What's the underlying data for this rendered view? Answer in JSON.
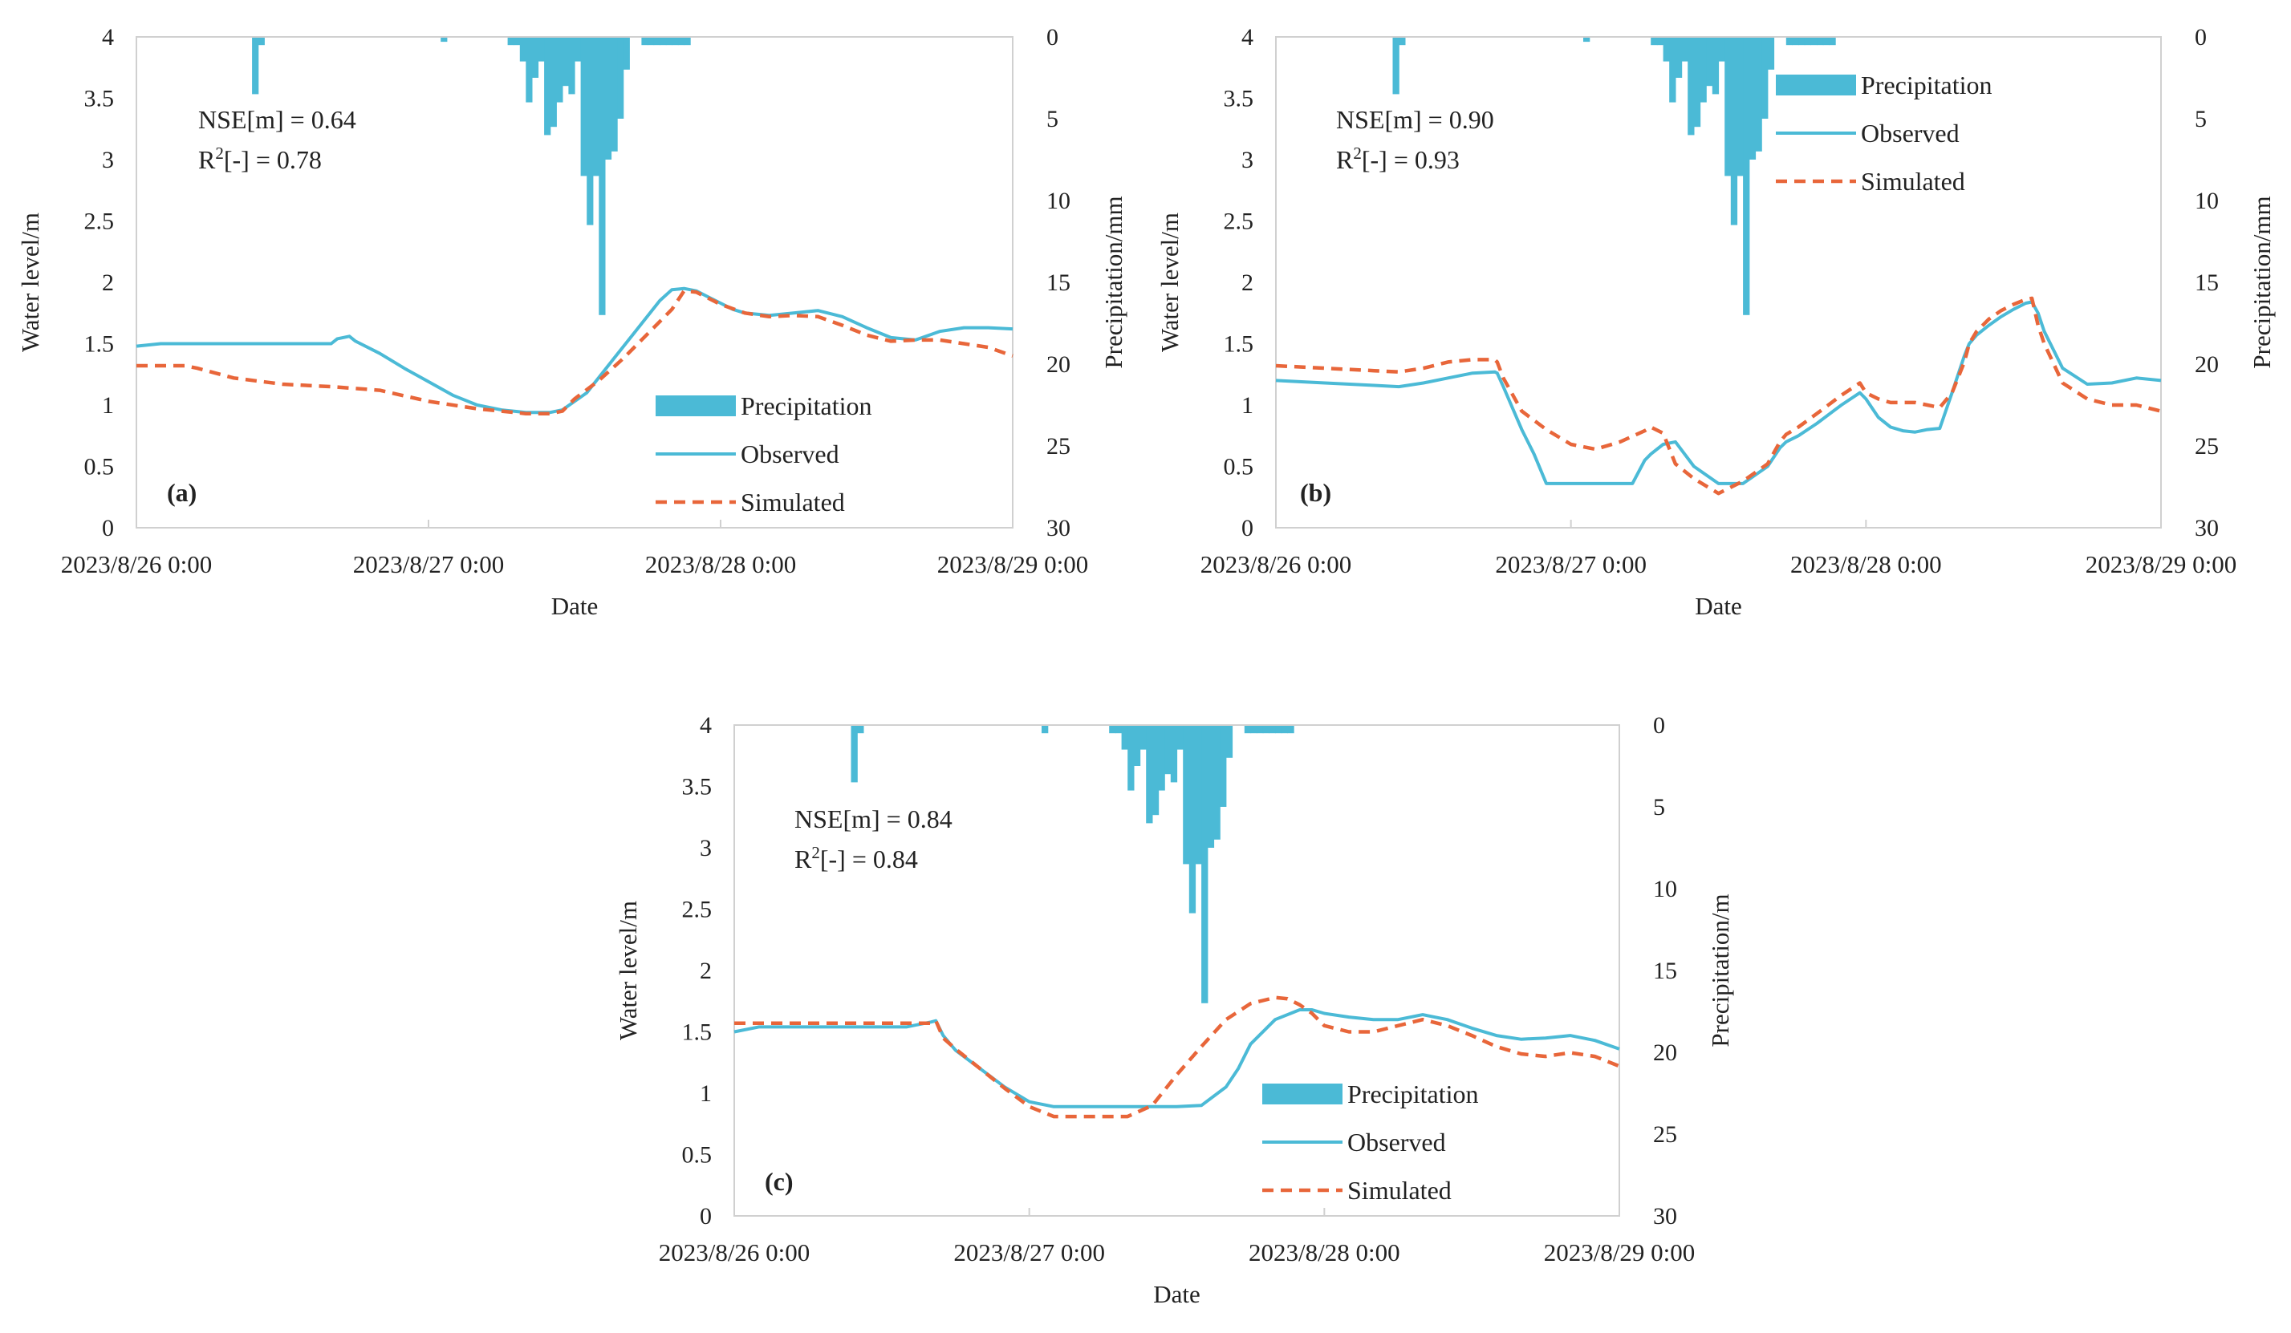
{
  "figure_note": "Three panels: observed vs simulated water level with inverted precipitation bars",
  "chart_data": [
    {
      "type": "line",
      "panel_label": "(a)",
      "xlabel": "Date",
      "ylabel": "Water level/m",
      "y2label": "Precipitation/mm",
      "x_ticks": [
        "2023/8/26 0:00",
        "2023/8/27 0:00",
        "2023/8/28 0:00",
        "2023/8/29 0:00"
      ],
      "xlim_hours": [
        0,
        72
      ],
      "ylim": [
        0,
        4
      ],
      "y_ticks": [
        0,
        0.5,
        1,
        1.5,
        2,
        2.5,
        3,
        3.5,
        4
      ],
      "y_tick_labels": [
        "0",
        "0.5",
        "1",
        "1.5",
        "2",
        "2.5",
        "3",
        "3.5",
        "4"
      ],
      "y2lim_inverted": [
        0,
        30
      ],
      "y2_ticks": [
        0,
        5,
        10,
        15,
        20,
        25,
        30
      ],
      "y2_tick_labels": [
        "0",
        "5",
        "10",
        "15",
        "20",
        "25",
        "30"
      ],
      "metrics": {
        "nse_prefix": "NSE[m] = ",
        "nse_value": "0.64",
        "r2_base": "R",
        "r2_sup": "2",
        "r2_suffix": "[-] = ",
        "r2_value": "0.78"
      },
      "legend": {
        "placement": "bottom-right",
        "entries": [
          "Precipitation",
          "Observed",
          "Simulated"
        ]
      },
      "colors": {
        "precipitation": "#4bbad6",
        "observed": "#4bbad6",
        "simulated": "#e8663a"
      },
      "precipitation": {
        "start_hours": 9.5,
        "bar_hours": 0.5,
        "values_mm": [
          3.5,
          0.5,
          0,
          0,
          0,
          0,
          0,
          0,
          0,
          0,
          0,
          0,
          0,
          0,
          0,
          0,
          0,
          0,
          0,
          0,
          0,
          0,
          0,
          0,
          0,
          0,
          0,
          0,
          0,
          0,
          0,
          0.3,
          0,
          0,
          0,
          0,
          0,
          0,
          0,
          0,
          0,
          0,
          0.5,
          0.5,
          1.5,
          4,
          2.5,
          1.5,
          6,
          5.5,
          4,
          3,
          3.5,
          1.5,
          8.5,
          11.5,
          8.5,
          17,
          7.5,
          7,
          5,
          2,
          0,
          0,
          0.5,
          0.5,
          0.5,
          0.5,
          0.5,
          0.5,
          0.5,
          0.5
        ]
      },
      "series": [
        {
          "name": "Observed",
          "style": "solid",
          "x": [
            0,
            2,
            6,
            10,
            14,
            16,
            16.5,
            17.5,
            18,
            20,
            22,
            24,
            26,
            28,
            30,
            32,
            34,
            35,
            37,
            39,
            41,
            43,
            44,
            45,
            46,
            47,
            48,
            49,
            50,
            52,
            54,
            56,
            58,
            60,
            62,
            64,
            66,
            68,
            70,
            72
          ],
          "values": [
            1.48,
            1.5,
            1.5,
            1.5,
            1.5,
            1.5,
            1.54,
            1.56,
            1.52,
            1.42,
            1.3,
            1.19,
            1.08,
            1.0,
            0.96,
            0.94,
            0.94,
            0.96,
            1.1,
            1.35,
            1.6,
            1.85,
            1.94,
            1.95,
            1.93,
            1.88,
            1.83,
            1.78,
            1.75,
            1.73,
            1.75,
            1.77,
            1.72,
            1.63,
            1.55,
            1.53,
            1.6,
            1.63,
            1.63,
            1.62
          ]
        },
        {
          "name": "Simulated",
          "style": "dashed",
          "x": [
            0,
            4,
            5,
            8,
            12,
            16,
            20,
            24,
            28,
            32,
            34,
            35,
            36,
            38,
            40,
            42,
            44,
            45,
            46,
            48,
            50,
            52,
            54,
            56,
            58,
            60,
            62,
            64,
            66,
            68,
            70,
            72
          ],
          "values": [
            1.32,
            1.32,
            1.3,
            1.22,
            1.17,
            1.15,
            1.12,
            1.03,
            0.97,
            0.93,
            0.93,
            0.95,
            1.05,
            1.2,
            1.38,
            1.58,
            1.78,
            1.93,
            1.92,
            1.82,
            1.75,
            1.72,
            1.73,
            1.72,
            1.65,
            1.57,
            1.52,
            1.53,
            1.53,
            1.5,
            1.47,
            1.4
          ]
        }
      ]
    },
    {
      "type": "line",
      "panel_label": "(b)",
      "xlabel": "Date",
      "ylabel": "Water level/m",
      "y2label": "Precipitation/mm",
      "x_ticks": [
        "2023/8/26 0:00",
        "2023/8/27 0:00",
        "2023/8/28 0:00",
        "2023/8/29 0:00"
      ],
      "xlim_hours": [
        0,
        72
      ],
      "ylim": [
        0,
        4
      ],
      "y_ticks": [
        0,
        0.5,
        1,
        1.5,
        2,
        2.5,
        3,
        3.5,
        4
      ],
      "y_tick_labels": [
        "0",
        "0.5",
        "1",
        "1.5",
        "2",
        "2.5",
        "3",
        "3.5",
        "4"
      ],
      "y2lim_inverted": [
        0,
        30
      ],
      "y2_ticks": [
        0,
        5,
        10,
        15,
        20,
        25,
        30
      ],
      "y2_tick_labels": [
        "0",
        "5",
        "10",
        "15",
        "20",
        "25",
        "30"
      ],
      "metrics": {
        "nse_prefix": "NSE[m] = ",
        "nse_value": "0.90",
        "r2_base": "R",
        "r2_sup": "2",
        "r2_suffix": "[-] = ",
        "r2_value": "0.93"
      },
      "legend": {
        "placement": "top-right",
        "entries": [
          "Precipitation",
          "Observed",
          "Simulated"
        ]
      },
      "colors": {
        "precipitation": "#4bbad6",
        "observed": "#4bbad6",
        "simulated": "#e8663a"
      },
      "precipitation": {
        "start_hours": 9.5,
        "bar_hours": 0.5,
        "values_mm": [
          3.5,
          0.5,
          0,
          0,
          0,
          0,
          0,
          0,
          0,
          0,
          0,
          0,
          0,
          0,
          0,
          0,
          0,
          0,
          0,
          0,
          0,
          0,
          0,
          0,
          0,
          0,
          0,
          0,
          0,
          0,
          0,
          0.3,
          0,
          0,
          0,
          0,
          0,
          0,
          0,
          0,
          0,
          0,
          0.5,
          0.5,
          1.5,
          4,
          2.5,
          1.5,
          6,
          5.5,
          4,
          3,
          3.5,
          1.5,
          8.5,
          11.5,
          8.5,
          17,
          7.5,
          7,
          5,
          2,
          0,
          0,
          0.5,
          0.5,
          0.5,
          0.5,
          0.5,
          0.5,
          0.5,
          0.5
        ]
      },
      "series": [
        {
          "name": "Observed",
          "style": "solid",
          "x": [
            0,
            4,
            8,
            10,
            12,
            14,
            16,
            17.8,
            18,
            18.5,
            20,
            21,
            22,
            23,
            25,
            27,
            29,
            30,
            30.5,
            31.5,
            32.5,
            34,
            36,
            38,
            40,
            41,
            41.5,
            42.5,
            44,
            46,
            47.5,
            48,
            49,
            50,
            51,
            52,
            53,
            54,
            55,
            56,
            56.4,
            57,
            58,
            59,
            60,
            61,
            61.5,
            62,
            62.5,
            64,
            66,
            68,
            70,
            72
          ],
          "values": [
            1.2,
            1.18,
            1.16,
            1.15,
            1.18,
            1.22,
            1.26,
            1.27,
            1.26,
            1.15,
            0.8,
            0.6,
            0.36,
            0.36,
            0.36,
            0.36,
            0.36,
            0.55,
            0.6,
            0.68,
            0.7,
            0.5,
            0.36,
            0.36,
            0.5,
            0.65,
            0.7,
            0.75,
            0.85,
            1.0,
            1.1,
            1.05,
            0.9,
            0.82,
            0.79,
            0.78,
            0.8,
            0.81,
            1.1,
            1.4,
            1.5,
            1.57,
            1.65,
            1.72,
            1.78,
            1.83,
            1.84,
            1.75,
            1.6,
            1.3,
            1.17,
            1.18,
            1.22,
            1.2
          ]
        },
        {
          "name": "Simulated",
          "style": "dashed",
          "x": [
            0,
            4,
            8,
            10,
            12,
            14,
            16,
            17.8,
            18,
            18.5,
            20,
            22,
            24,
            26,
            28,
            30,
            30.5,
            31.5,
            32.5,
            34,
            36,
            38,
            40,
            41,
            41.5,
            42.5,
            44,
            46,
            47.5,
            48,
            49,
            50,
            51,
            52,
            53,
            54,
            55,
            56,
            56.4,
            57,
            58,
            59,
            60,
            61,
            61.5,
            62,
            62.5,
            64,
            66,
            68,
            70,
            72
          ],
          "values": [
            1.32,
            1.3,
            1.28,
            1.27,
            1.3,
            1.35,
            1.37,
            1.37,
            1.35,
            1.22,
            0.95,
            0.8,
            0.68,
            0.64,
            0.7,
            0.79,
            0.82,
            0.77,
            0.52,
            0.4,
            0.28,
            0.38,
            0.52,
            0.7,
            0.76,
            0.82,
            0.93,
            1.08,
            1.18,
            1.1,
            1.05,
            1.02,
            1.02,
            1.02,
            1.0,
            0.98,
            1.1,
            1.35,
            1.5,
            1.6,
            1.7,
            1.77,
            1.82,
            1.86,
            1.87,
            1.65,
            1.5,
            1.18,
            1.05,
            1.0,
            1.0,
            0.95
          ]
        }
      ]
    },
    {
      "type": "line",
      "panel_label": "(c)",
      "xlabel": "Date",
      "ylabel": "Water level/m",
      "y2label": "Precipitation/m",
      "x_ticks": [
        "2023/8/26 0:00",
        "2023/8/27 0:00",
        "2023/8/28 0:00",
        "2023/8/29 0:00"
      ],
      "xlim_hours": [
        0,
        72
      ],
      "ylim": [
        0,
        4
      ],
      "y_ticks": [
        0,
        0.5,
        1,
        1.5,
        2,
        2.5,
        3,
        3.5,
        4
      ],
      "y_tick_labels": [
        "0",
        "0.5",
        "1",
        "1.5",
        "2",
        "2.5",
        "3",
        "3.5",
        "4"
      ],
      "y2lim_inverted": [
        0,
        30
      ],
      "y2_ticks": [
        0,
        5,
        10,
        15,
        20,
        25,
        30
      ],
      "y2_tick_labels": [
        "0",
        "5",
        "10",
        "15",
        "20",
        "25",
        "30"
      ],
      "metrics": {
        "nse_prefix": "NSE[m] = ",
        "nse_value": "0.84",
        "r2_base": "R",
        "r2_sup": "2",
        "r2_suffix": "[-] = ",
        "r2_value": "0.84"
      },
      "legend": {
        "placement": "bottom-right",
        "entries": [
          "Precipitation",
          "Observed",
          "Simulated"
        ]
      },
      "colors": {
        "precipitation": "#4bbad6",
        "observed": "#4bbad6",
        "simulated": "#e8663a"
      },
      "precipitation": {
        "start_hours": 9.5,
        "bar_hours": 0.5,
        "values_mm": [
          3.5,
          0.5,
          0,
          0,
          0,
          0,
          0,
          0,
          0,
          0,
          0,
          0,
          0,
          0,
          0,
          0,
          0,
          0,
          0,
          0,
          0,
          0,
          0,
          0,
          0,
          0,
          0,
          0,
          0,
          0,
          0,
          0.5,
          0,
          0,
          0,
          0,
          0,
          0,
          0,
          0,
          0,
          0,
          0.5,
          0.5,
          1.5,
          4,
          2.5,
          1.5,
          6,
          5.5,
          4,
          3,
          3.5,
          1.5,
          8.5,
          11.5,
          8.5,
          17,
          7.5,
          7,
          5,
          2,
          0,
          0,
          0.5,
          0.5,
          0.5,
          0.5,
          0.5,
          0.5,
          0.5,
          0.5
        ]
      },
      "series": [
        {
          "name": "Observed",
          "style": "solid",
          "x": [
            0,
            2,
            6,
            10,
            14,
            16,
            16.4,
            17,
            18,
            20,
            22,
            24,
            26,
            28,
            30,
            32,
            34,
            35,
            36,
            38,
            40,
            41,
            42,
            44,
            46,
            47,
            48,
            50,
            52,
            54,
            56,
            58,
            60,
            62,
            64,
            66,
            68,
            70,
            72
          ],
          "values": [
            1.5,
            1.54,
            1.54,
            1.54,
            1.54,
            1.58,
            1.59,
            1.47,
            1.35,
            1.2,
            1.05,
            0.93,
            0.89,
            0.89,
            0.89,
            0.89,
            0.89,
            0.89,
            0.89,
            0.9,
            1.05,
            1.2,
            1.4,
            1.6,
            1.68,
            1.68,
            1.65,
            1.62,
            1.6,
            1.6,
            1.64,
            1.6,
            1.53,
            1.47,
            1.44,
            1.45,
            1.47,
            1.43,
            1.36
          ]
        },
        {
          "name": "Simulated",
          "style": "dashed",
          "x": [
            0,
            4,
            8,
            12,
            16,
            16.4,
            17,
            18,
            20,
            22,
            24,
            26,
            28,
            30,
            32,
            34,
            36,
            38,
            40,
            42,
            44,
            45,
            46,
            47,
            48,
            50,
            52,
            54,
            56,
            58,
            60,
            62,
            64,
            66,
            68,
            70,
            72
          ],
          "values": [
            1.57,
            1.57,
            1.57,
            1.57,
            1.57,
            1.59,
            1.45,
            1.36,
            1.2,
            1.04,
            0.89,
            0.81,
            0.81,
            0.81,
            0.81,
            0.9,
            1.15,
            1.38,
            1.6,
            1.73,
            1.78,
            1.77,
            1.72,
            1.65,
            1.55,
            1.5,
            1.5,
            1.55,
            1.6,
            1.55,
            1.47,
            1.38,
            1.32,
            1.3,
            1.33,
            1.3,
            1.22
          ]
        }
      ]
    }
  ]
}
